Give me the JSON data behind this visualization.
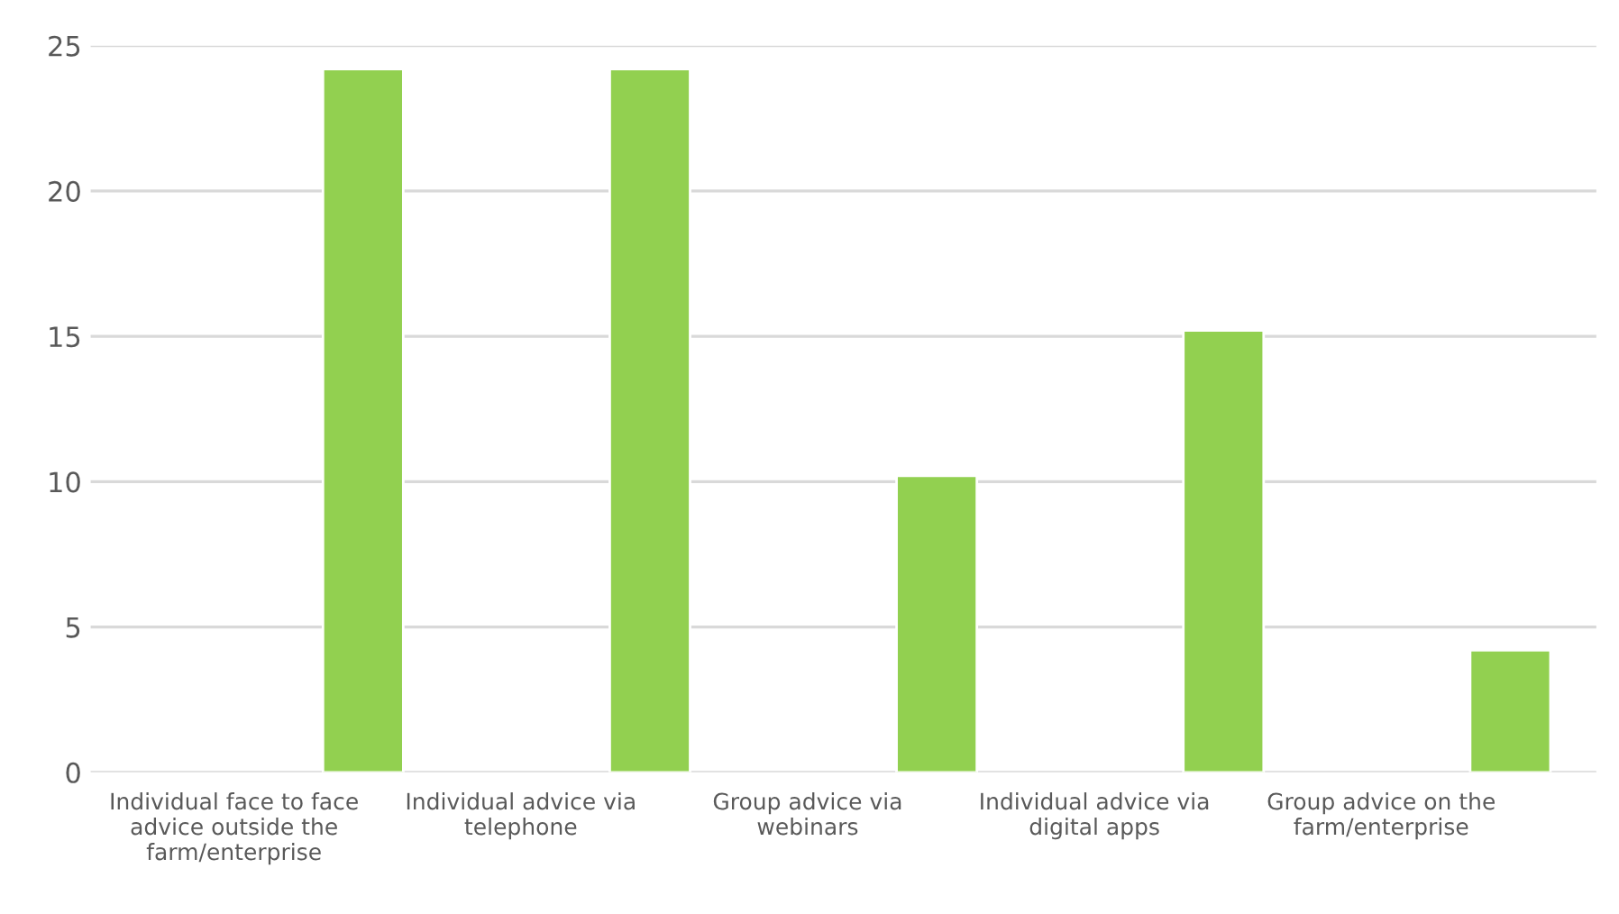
{
  "chart_data": {
    "type": "bar",
    "categories": [
      "Individual face to face advice outside the farm/enterprise",
      "Individual advice via telephone",
      "Group advice via webinars",
      "Individual advice via digital apps",
      "Group advice on the farm/enterprise"
    ],
    "values": [
      24.2,
      24.2,
      10.2,
      15.2,
      4.2
    ],
    "color": "#92d050",
    "ylim": [
      0,
      25
    ],
    "yticks": [
      0,
      5,
      10,
      15,
      20,
      25
    ],
    "grid": "y"
  }
}
